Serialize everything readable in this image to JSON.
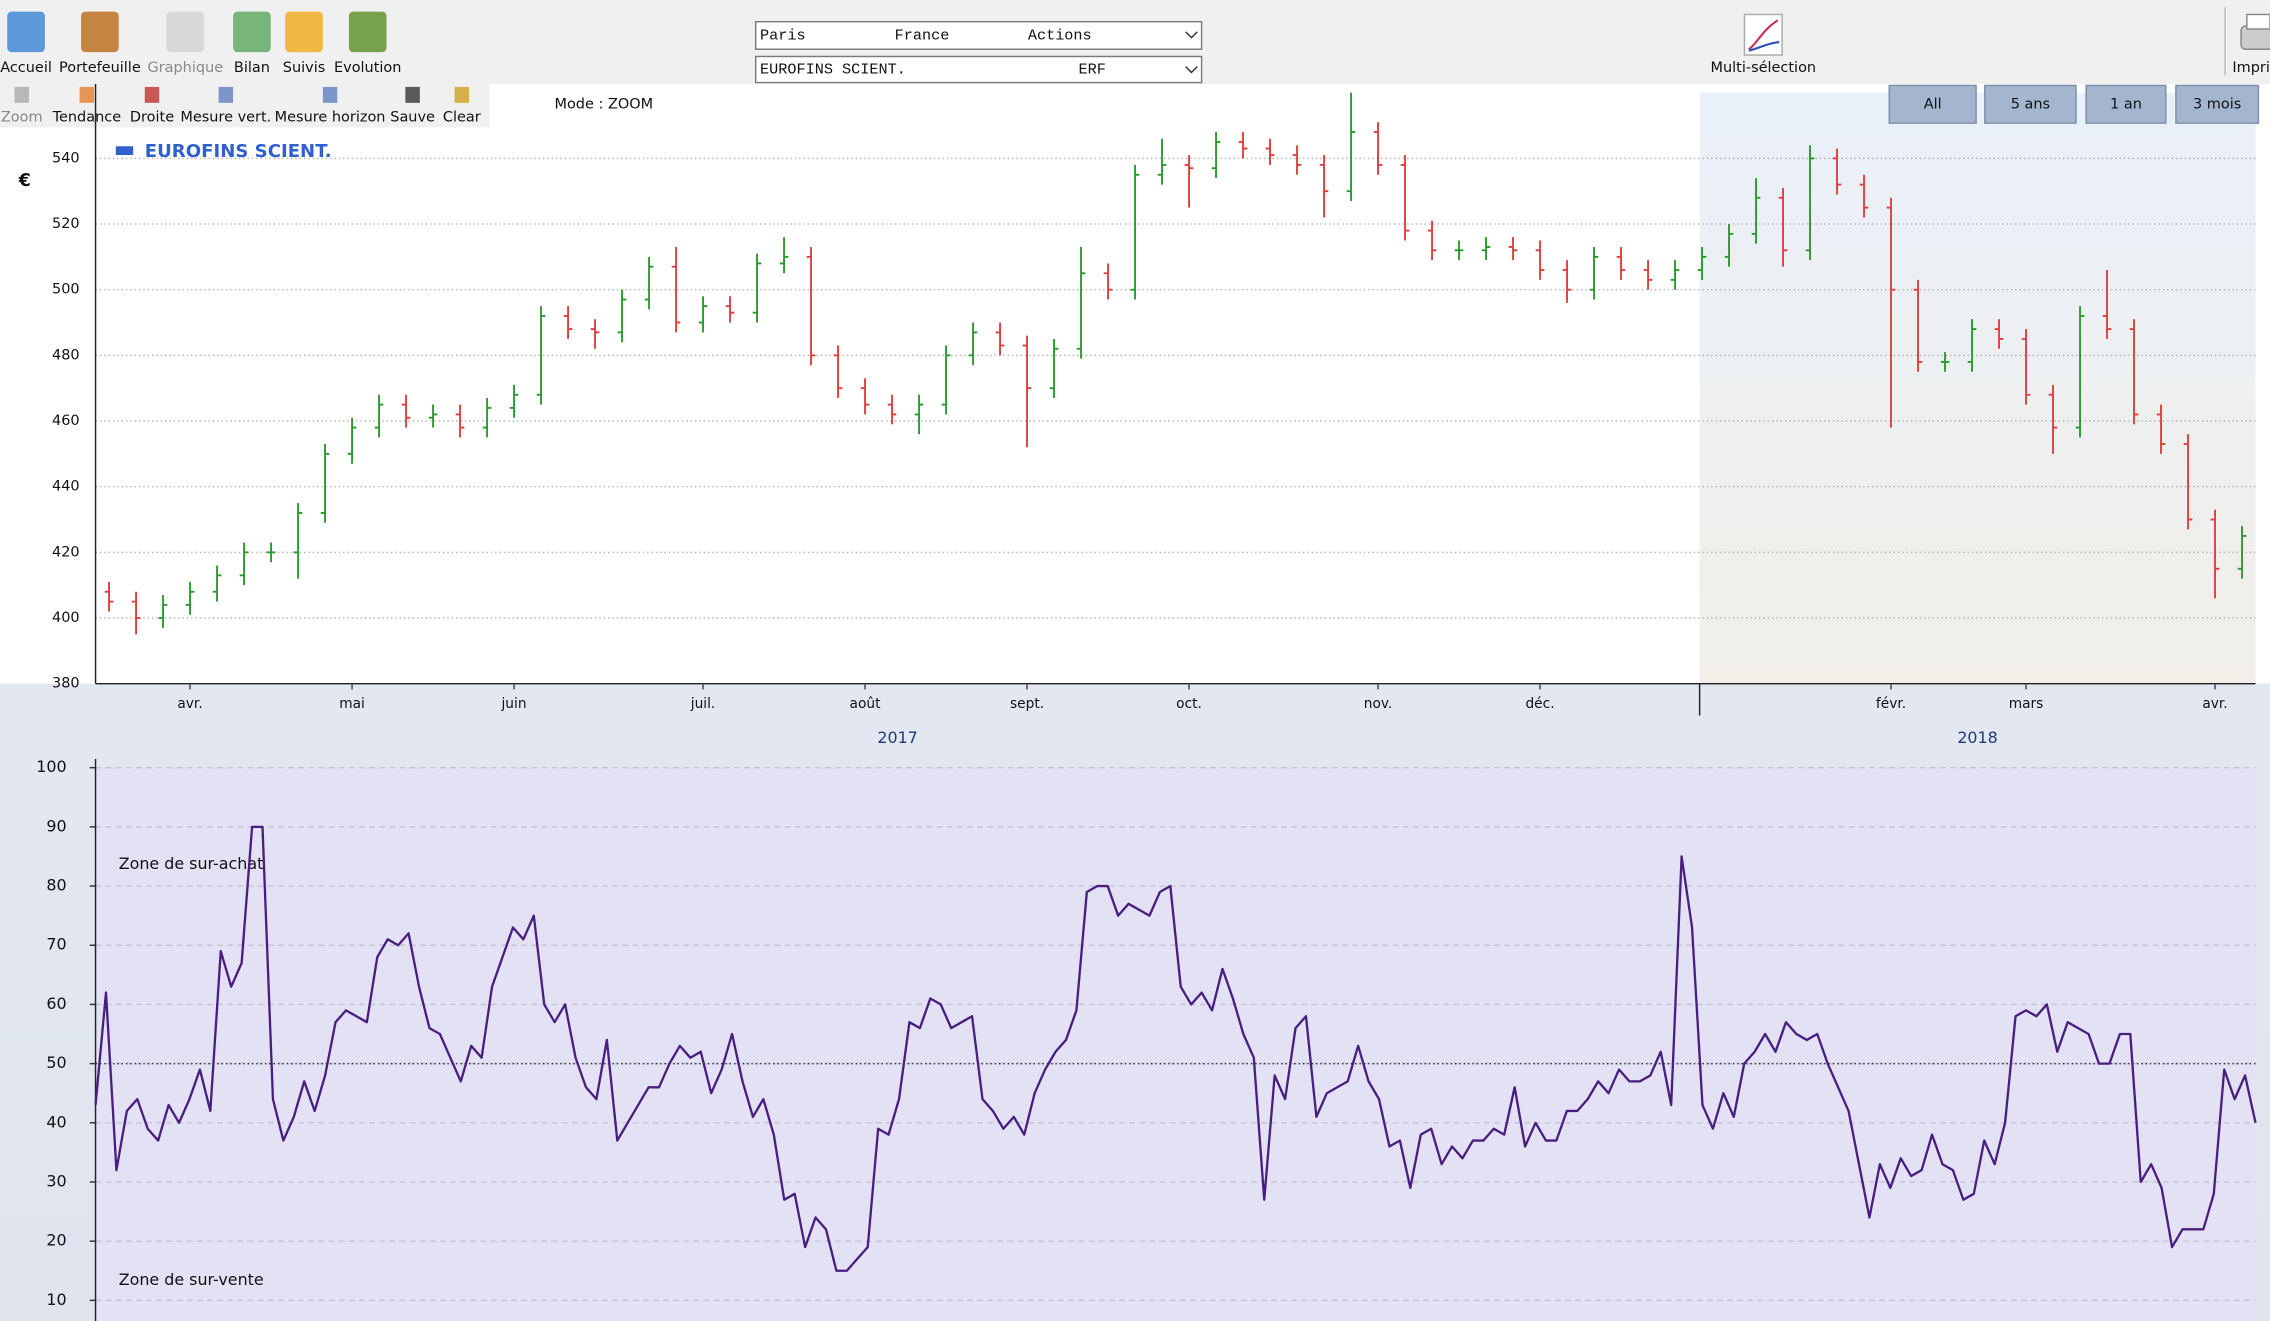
{
  "toolbar": {
    "main": [
      "Accueil",
      "Portefeuille",
      "Graphique",
      "Bilan",
      "Suivis",
      "Evolution"
    ],
    "tools": [
      "Zoom",
      "Tendance",
      "Droite",
      "Mesure vert.",
      "Mesure horizon",
      "Sauve",
      "Clear"
    ],
    "multi_selection": "Multi-sélection",
    "print": "Impri"
  },
  "selectors": {
    "exchange": "Paris",
    "country": "France",
    "kind": "Actions",
    "stock": "EUROFINS SCIENT.",
    "ticker": "ERF"
  },
  "mode": "Mode : ZOOM",
  "range_buttons": [
    "All",
    "5 ans",
    "1 an",
    "3 mois"
  ],
  "chart_data": [
    {
      "type": "ohlc",
      "y_label": "€",
      "series": [
        {
          "name": "EUROFINS SCIENT.",
          "color": "#3060d0"
        }
      ],
      "up_color": "#2a9a2a",
      "down_color": "#e23c3c",
      "categories": [
        null,
        null,
        null,
        "avr.",
        null,
        null,
        null,
        null,
        null,
        "mai",
        null,
        null,
        null,
        null,
        null,
        "juin",
        null,
        null,
        null,
        null,
        null,
        null,
        "juil.",
        null,
        null,
        null,
        null,
        null,
        "août",
        null,
        null,
        null,
        null,
        null,
        "sept.",
        null,
        null,
        null,
        null,
        null,
        "oct.",
        null,
        null,
        null,
        null,
        null,
        null,
        "nov.",
        null,
        null,
        null,
        null,
        null,
        "déc.",
        null,
        null,
        null,
        null,
        null,
        null,
        null,
        null,
        null,
        null,
        null,
        null,
        "févr.",
        null,
        null,
        null,
        null,
        "mars",
        null,
        null,
        null,
        null,
        null,
        null,
        "avr.",
        null
      ],
      "open": [
        408,
        405,
        400,
        404,
        408,
        413,
        420,
        420,
        432,
        450,
        458,
        465,
        461,
        462,
        458,
        464,
        468,
        492,
        488,
        487,
        497,
        507,
        490,
        495,
        493,
        508,
        510,
        480,
        470,
        465,
        462,
        465,
        480,
        487,
        483,
        470,
        482,
        505,
        500,
        535,
        538,
        537,
        545,
        543,
        541,
        538,
        530,
        548,
        538,
        518,
        512,
        512,
        513,
        512,
        506,
        500,
        510,
        506,
        503,
        506,
        510,
        517,
        528,
        512,
        540,
        532,
        525,
        500,
        478,
        478,
        488,
        485,
        468,
        458,
        492,
        488,
        462,
        453,
        430,
        415
      ],
      "high": [
        411,
        408,
        407,
        411,
        416,
        423,
        423,
        435,
        453,
        461,
        468,
        468,
        465,
        465,
        467,
        471,
        495,
        495,
        491,
        500,
        510,
        513,
        498,
        498,
        511,
        516,
        513,
        483,
        473,
        468,
        468,
        483,
        490,
        490,
        486,
        485,
        513,
        508,
        538,
        546,
        541,
        548,
        548,
        546,
        544,
        541,
        560,
        551,
        541,
        521,
        515,
        516,
        516,
        515,
        509,
        513,
        513,
        509,
        509,
        513,
        520,
        534,
        531,
        544,
        543,
        535,
        528,
        503,
        481,
        491,
        491,
        488,
        471,
        495,
        506,
        491,
        465,
        456,
        433,
        428
      ],
      "low": [
        402,
        395,
        397,
        401,
        405,
        410,
        417,
        412,
        429,
        447,
        455,
        458,
        458,
        455,
        455,
        461,
        465,
        485,
        482,
        484,
        494,
        487,
        487,
        490,
        490,
        505,
        477,
        467,
        462,
        459,
        456,
        462,
        477,
        480,
        452,
        467,
        479,
        497,
        497,
        532,
        525,
        534,
        540,
        538,
        535,
        522,
        527,
        535,
        515,
        509,
        509,
        509,
        509,
        503,
        496,
        497,
        503,
        500,
        500,
        503,
        507,
        514,
        507,
        509,
        529,
        522,
        458,
        475,
        475,
        475,
        482,
        465,
        450,
        455,
        485,
        459,
        450,
        427,
        406,
        412
      ],
      "close": [
        405,
        400,
        404,
        408,
        413,
        420,
        420,
        432,
        450,
        458,
        465,
        461,
        462,
        458,
        464,
        468,
        492,
        488,
        487,
        497,
        507,
        490,
        495,
        493,
        508,
        510,
        480,
        470,
        465,
        462,
        465,
        480,
        487,
        483,
        470,
        482,
        505,
        500,
        535,
        538,
        537,
        545,
        543,
        541,
        538,
        530,
        548,
        538,
        518,
        512,
        512,
        513,
        512,
        506,
        500,
        510,
        506,
        503,
        506,
        510,
        517,
        528,
        512,
        540,
        532,
        525,
        500,
        478,
        478,
        488,
        485,
        468,
        458,
        492,
        488,
        462,
        453,
        430,
        415,
        425
      ],
      "years": [
        "2017",
        "2018"
      ],
      "ylim": [
        380,
        560
      ],
      "yticks": [
        380,
        400,
        420,
        440,
        460,
        480,
        500,
        520,
        540
      ],
      "grid": true
    },
    {
      "type": "line",
      "color": "#4a1e80",
      "annotations": [
        "Zone de sur-achat",
        "Zone de sur-vente"
      ],
      "values": [
        43,
        62,
        32,
        42,
        44,
        39,
        37,
        43,
        40,
        44,
        49,
        42,
        69,
        63,
        67,
        90,
        90,
        44,
        37,
        41,
        47,
        42,
        48,
        57,
        59,
        58,
        57,
        68,
        71,
        70,
        72,
        63,
        56,
        55,
        51,
        47,
        53,
        51,
        63,
        68,
        73,
        71,
        75,
        60,
        57,
        60,
        51,
        46,
        44,
        54,
        37,
        40,
        43,
        46,
        46,
        50,
        53,
        51,
        52,
        45,
        49,
        55,
        47,
        41,
        44,
        38,
        27,
        28,
        19,
        24,
        22,
        15,
        15,
        17,
        19,
        39,
        38,
        44,
        57,
        56,
        61,
        60,
        56,
        57,
        58,
        44,
        42,
        39,
        41,
        38,
        45,
        49,
        52,
        54,
        59,
        79,
        80,
        80,
        75,
        77,
        76,
        75,
        79,
        80,
        63,
        60,
        62,
        59,
        66,
        61,
        55,
        51,
        27,
        48,
        44,
        56,
        58,
        41,
        45,
        46,
        47,
        53,
        47,
        44,
        36,
        37,
        29,
        38,
        39,
        33,
        36,
        34,
        37,
        37,
        39,
        38,
        46,
        36,
        40,
        37,
        37,
        42,
        42,
        44,
        47,
        45,
        49,
        47,
        47,
        48,
        52,
        43,
        85,
        73,
        43,
        39,
        45,
        41,
        50,
        52,
        55,
        52,
        57,
        55,
        54,
        55,
        50,
        46,
        42,
        33,
        24,
        33,
        29,
        34,
        31,
        32,
        38,
        33,
        32,
        27,
        28,
        37,
        33,
        40,
        58,
        59,
        58,
        60,
        52,
        57,
        56,
        55,
        50,
        50,
        55,
        55,
        30,
        33,
        29,
        19,
        22,
        22,
        22,
        28,
        49,
        44,
        48,
        40
      ],
      "reference_line": 50,
      "ylim": [
        7,
        100
      ],
      "yticks": [
        10,
        20,
        30,
        40,
        50,
        60,
        70,
        80,
        90,
        100
      ],
      "grid": true
    }
  ]
}
